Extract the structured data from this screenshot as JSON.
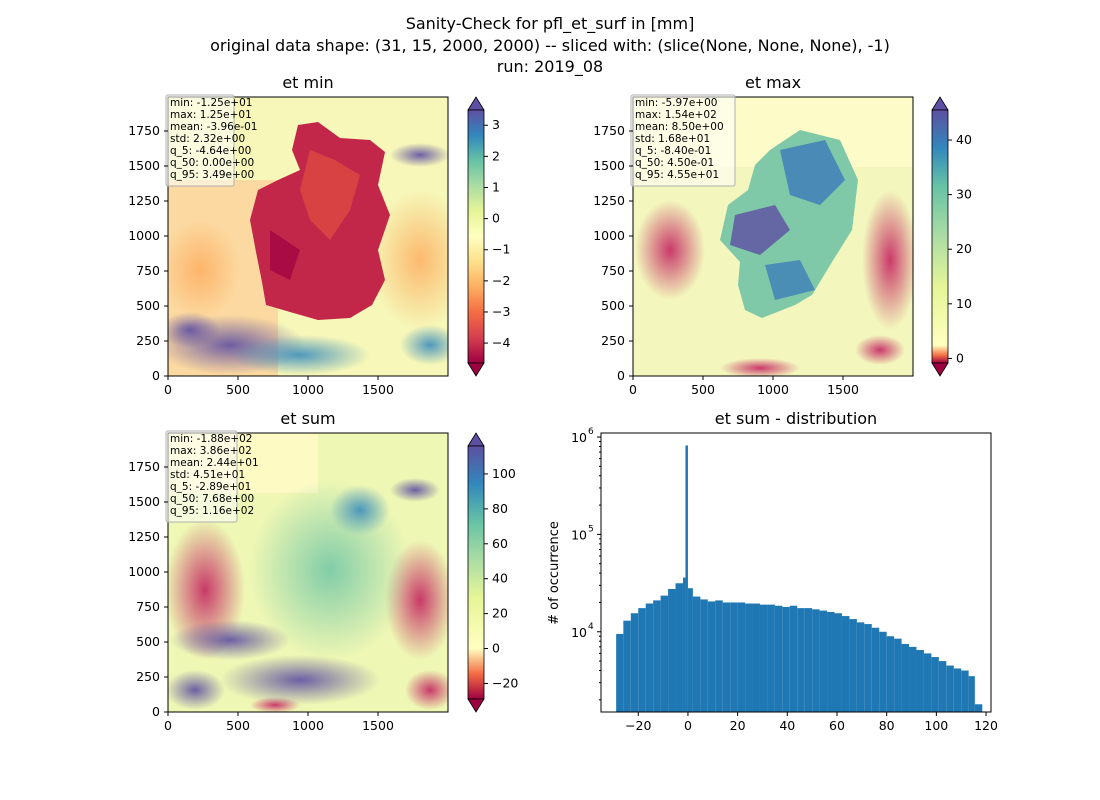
{
  "figure": {
    "title_line1": "Sanity-Check for pfl_et_surf in [mm]",
    "title_line2": "original data shape: (31, 15, 2000, 2000) -- sliced with: (slice(None, None, None), -1)",
    "title_line3": "run: 2019_08"
  },
  "map_axis": {
    "x_ticks": [
      "0",
      "500",
      "1000",
      "1500"
    ],
    "y_ticks": [
      "0",
      "250",
      "500",
      "750",
      "1000",
      "1250",
      "1500",
      "1750"
    ]
  },
  "panels": [
    {
      "title": "et min",
      "stats": [
        "min: -1.25e+01",
        "max: 1.25e+01",
        "mean: -3.96e-01",
        "std: 2.32e+00",
        "q_5: -4.64e+00",
        "q_50: 0.00e+00",
        "q_95: 3.49e+00"
      ],
      "colorbar": {
        "vmin": -4.64,
        "vmax": 3.49,
        "ticks": [
          "3",
          "2",
          "1",
          "0",
          "−1",
          "−2",
          "−3",
          "−4"
        ],
        "tick_values": [
          3,
          2,
          1,
          0,
          -1,
          -2,
          -3,
          -4
        ]
      }
    },
    {
      "title": "et max",
      "stats": [
        "min: -5.97e+00",
        "max: 1.54e+02",
        "mean: 8.50e+00",
        "std: 1.68e+01",
        "q_5: -8.40e-01",
        "q_50: 4.50e-01",
        "q_95: 4.55e+01"
      ],
      "colorbar": {
        "vmin": -0.84,
        "vmax": 45.5,
        "ticks": [
          "40",
          "30",
          "20",
          "10",
          "0"
        ],
        "tick_values": [
          40,
          30,
          20,
          10,
          0
        ]
      }
    },
    {
      "title": "et sum",
      "stats": [
        "min: -1.88e+02",
        "max: 3.86e+02",
        "mean: 2.44e+01",
        "std: 4.51e+01",
        "q_5: -2.89e+01",
        "q_50: 7.68e+00",
        "q_95: 1.16e+02"
      ],
      "colorbar": {
        "vmin": -28.9,
        "vmax": 116,
        "ticks": [
          "100",
          "80",
          "60",
          "40",
          "20",
          "0",
          "−20"
        ],
        "tick_values": [
          100,
          80,
          60,
          40,
          20,
          0,
          -20
        ]
      }
    }
  ],
  "chart_data": {
    "type": "bar",
    "title": "et sum - distribution",
    "ylabel": "# of occurrence",
    "xlabel": "",
    "y_scale": "log",
    "xlim": [
      -35,
      122
    ],
    "ylim": [
      1500,
      1100000
    ],
    "x_ticks": [
      "−20",
      "0",
      "20",
      "40",
      "60",
      "80",
      "100",
      "120"
    ],
    "x_tick_values": [
      -20,
      0,
      20,
      40,
      60,
      80,
      100,
      120
    ],
    "y_ticks": [
      "10",
      "10",
      "10"
    ],
    "y_tick_exponents": [
      "4",
      "5",
      "6"
    ],
    "y_tick_values": [
      10000,
      100000,
      1000000
    ],
    "bar_color": "#1f77b4",
    "bins": [
      [
        -28.9,
        9500
      ],
      [
        -26.0,
        13000
      ],
      [
        -23.0,
        15500
      ],
      [
        -20.0,
        17500
      ],
      [
        -17.0,
        19500
      ],
      [
        -14.0,
        21000
      ],
      [
        -11.0,
        23500
      ],
      [
        -8.0,
        27500
      ],
      [
        -5.0,
        31500
      ],
      [
        -2.0,
        36000
      ],
      [
        -1.0,
        820000
      ],
      [
        0.0,
        28000
      ],
      [
        2.0,
        23000
      ],
      [
        5.0,
        21500
      ],
      [
        8.0,
        20500
      ],
      [
        11.0,
        21000
      ],
      [
        14.0,
        20000
      ],
      [
        17.0,
        20000
      ],
      [
        20.0,
        20000
      ],
      [
        23.0,
        19500
      ],
      [
        26.0,
        19500
      ],
      [
        29.0,
        19000
      ],
      [
        32.0,
        19000
      ],
      [
        35.0,
        18500
      ],
      [
        38.0,
        18000
      ],
      [
        41.0,
        18500
      ],
      [
        44.0,
        17500
      ],
      [
        47.0,
        17500
      ],
      [
        50.0,
        17000
      ],
      [
        53.0,
        16500
      ],
      [
        56.0,
        16000
      ],
      [
        59.0,
        15500
      ],
      [
        62.0,
        14500
      ],
      [
        65.0,
        13500
      ],
      [
        68.0,
        12500
      ],
      [
        71.0,
        12000
      ],
      [
        74.0,
        11000
      ],
      [
        77.0,
        10000
      ],
      [
        80.0,
        9000
      ],
      [
        83.0,
        8500
      ],
      [
        86.0,
        7500
      ],
      [
        89.0,
        7000
      ],
      [
        92.0,
        6500
      ],
      [
        95.0,
        6000
      ],
      [
        98.0,
        5500
      ],
      [
        101.0,
        5000
      ],
      [
        104.0,
        4500
      ],
      [
        107.0,
        4200
      ],
      [
        110.0,
        4000
      ],
      [
        113.0,
        3500
      ],
      [
        115.5,
        1800
      ]
    ]
  }
}
